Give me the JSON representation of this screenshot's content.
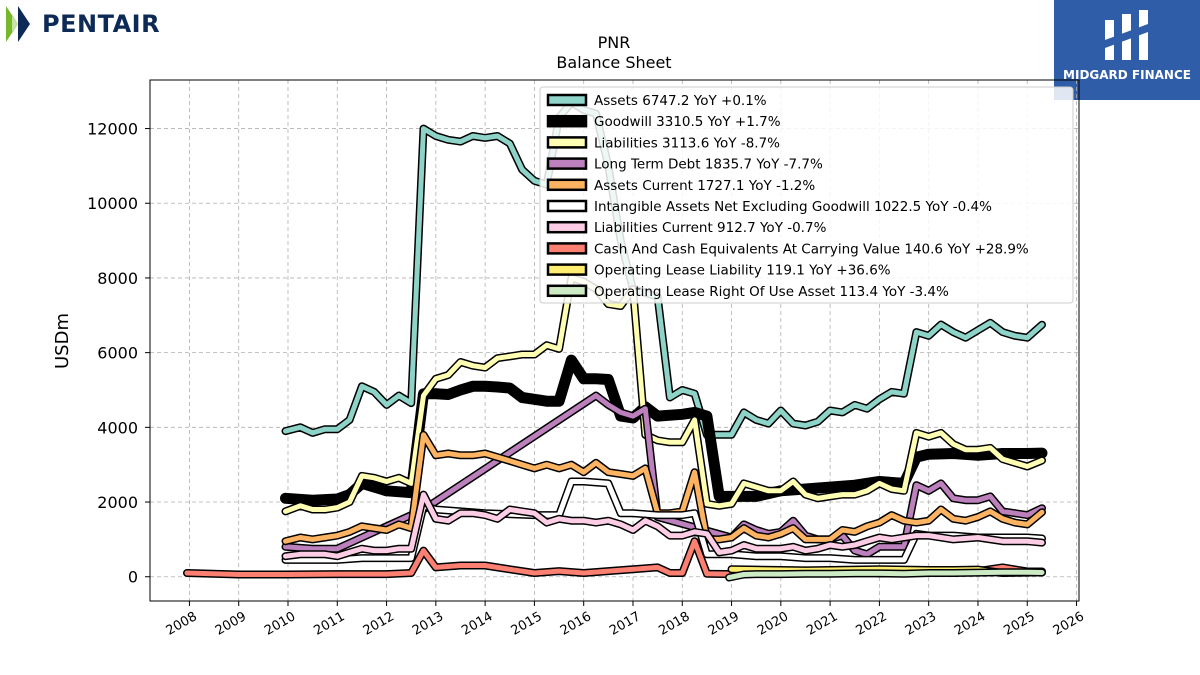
{
  "brand": {
    "logo_text": "PENTAIR",
    "badge_text": "MIDGARD FINANCE",
    "logo_color": "#0d2a57",
    "badge_color": "#2f5da8"
  },
  "chart_data": {
    "type": "line",
    "title": "PNR",
    "subtitle": "Balance  Sheet",
    "ylabel": "USDm",
    "xlabel": "",
    "xlim": [
      2007.2,
      2026.05
    ],
    "ylim": [
      -650,
      13300
    ],
    "x_ticks": [
      2008,
      2009,
      2010,
      2011,
      2012,
      2013,
      2014,
      2015,
      2016,
      2017,
      2018,
      2019,
      2020,
      2021,
      2022,
      2023,
      2024,
      2025,
      2026
    ],
    "y_ticks": [
      0,
      2000,
      4000,
      6000,
      8000,
      10000,
      12000
    ],
    "grid": true,
    "legend_position": "top-right",
    "series": [
      {
        "name": "Assets",
        "label": "Assets  6747.2 YoY +0.1%",
        "color": "#8dd3c7",
        "width": 5,
        "x": [
          2009.95,
          2010.25,
          2010.5,
          2010.75,
          2011.0,
          2011.25,
          2011.5,
          2011.75,
          2012.0,
          2012.25,
          2012.5,
          2012.75,
          2013.0,
          2013.25,
          2013.5,
          2013.75,
          2014.0,
          2014.25,
          2014.5,
          2014.75,
          2015.0,
          2015.25,
          2015.5,
          2015.75,
          2016.0,
          2016.25,
          2016.5,
          2016.75,
          2017.0,
          2017.25,
          2017.5,
          2017.75,
          2018.0,
          2018.25,
          2018.5,
          2018.75,
          2019.0,
          2019.25,
          2019.5,
          2019.75,
          2020.0,
          2020.25,
          2020.5,
          2020.75,
          2021.0,
          2021.25,
          2021.5,
          2021.75,
          2022.0,
          2022.25,
          2022.5,
          2022.75,
          2023.0,
          2023.25,
          2023.5,
          2023.75,
          2024.0,
          2024.25,
          2024.5,
          2024.75,
          2025.0,
          2025.3
        ],
        "y": [
          3900,
          4000,
          3850,
          3950,
          3950,
          4200,
          5100,
          4950,
          4600,
          4850,
          4650,
          12000,
          11800,
          11700,
          11650,
          11800,
          11750,
          11800,
          11600,
          10900,
          10600,
          10500,
          12300,
          12700,
          12500,
          12400,
          11000,
          9000,
          7700,
          7600,
          7500,
          4800,
          5000,
          4900,
          3800,
          3800,
          3800,
          4400,
          4200,
          4100,
          4450,
          4100,
          4050,
          4150,
          4450,
          4400,
          4600,
          4500,
          4750,
          4950,
          4900,
          6550,
          6450,
          6750,
          6550,
          6400,
          6600,
          6800,
          6550,
          6450,
          6400,
          6747.2
        ]
      },
      {
        "name": "Goodwill",
        "label": "Goodwill  3310.5 YoY +1.7%",
        "color": "#000000",
        "width": 8,
        "x": [
          2009.95,
          2010.5,
          2011.0,
          2011.25,
          2011.5,
          2012.0,
          2012.5,
          2012.75,
          2013.0,
          2013.25,
          2013.5,
          2013.75,
          2014.0,
          2014.25,
          2014.5,
          2014.75,
          2015.0,
          2015.25,
          2015.5,
          2015.75,
          2016.0,
          2016.25,
          2016.5,
          2016.75,
          2017.0,
          2017.25,
          2017.5,
          2018.0,
          2018.25,
          2018.5,
          2018.75,
          2019.0,
          2019.5,
          2020.0,
          2020.5,
          2021.0,
          2021.5,
          2022.0,
          2022.5,
          2022.75,
          2023.0,
          2023.5,
          2024.0,
          2024.5,
          2025.0,
          2025.3
        ],
        "y": [
          2100,
          2050,
          2080,
          2200,
          2500,
          2300,
          2250,
          4900,
          4900,
          4880,
          5000,
          5100,
          5100,
          5080,
          5050,
          4800,
          4750,
          4700,
          4700,
          5800,
          5300,
          5300,
          5280,
          4300,
          4250,
          4550,
          4300,
          4350,
          4400,
          4300,
          2150,
          2150,
          2150,
          2300,
          2350,
          2400,
          2450,
          2550,
          2500,
          3200,
          3280,
          3300,
          3250,
          3300,
          3300,
          3310.5
        ]
      },
      {
        "name": "Liabilities",
        "label": "Liabilities  3113.6 YoY -8.7%",
        "color": "#ffffb3",
        "width": 5,
        "x": [
          2009.95,
          2010.25,
          2010.5,
          2010.75,
          2011.0,
          2011.25,
          2011.5,
          2011.75,
          2012.0,
          2012.25,
          2012.5,
          2012.75,
          2013.0,
          2013.25,
          2013.5,
          2013.75,
          2014.0,
          2014.25,
          2014.5,
          2014.75,
          2015.0,
          2015.25,
          2015.5,
          2015.75,
          2016.0,
          2016.25,
          2016.5,
          2016.75,
          2017.0,
          2017.25,
          2017.5,
          2017.75,
          2018.0,
          2018.25,
          2018.5,
          2018.75,
          2019.0,
          2019.25,
          2019.5,
          2019.75,
          2020.0,
          2020.25,
          2020.5,
          2020.75,
          2021.0,
          2021.25,
          2021.5,
          2021.75,
          2022.0,
          2022.25,
          2022.5,
          2022.75,
          2023.0,
          2023.25,
          2023.5,
          2023.75,
          2024.0,
          2024.25,
          2024.5,
          2024.75,
          2025.0,
          2025.3
        ],
        "y": [
          1750,
          1900,
          1800,
          1800,
          1850,
          2000,
          2700,
          2650,
          2550,
          2650,
          2500,
          4850,
          5300,
          5400,
          5750,
          5650,
          5600,
          5850,
          5900,
          5950,
          5950,
          6200,
          6100,
          8000,
          7900,
          7700,
          7300,
          7250,
          7700,
          3800,
          3650,
          3600,
          3600,
          4200,
          1950,
          1900,
          1950,
          2500,
          2400,
          2300,
          2300,
          2550,
          2200,
          2100,
          2150,
          2200,
          2200,
          2300,
          2500,
          2350,
          2300,
          3850,
          3750,
          3850,
          3550,
          3400,
          3400,
          3450,
          3150,
          3050,
          2950,
          3113.6
        ]
      },
      {
        "name": "Long Term Debt",
        "label": "Long Term Debt  1835.7 YoY -7.7%",
        "color": "#bc80bd",
        "width": 5,
        "x": [
          2009.95,
          2010.5,
          2011.0,
          2012.75,
          2016.25,
          2016.5,
          2016.75,
          2017.0,
          2017.25,
          2017.5,
          2019.0,
          2019.25,
          2019.5,
          2019.75,
          2020.0,
          2020.25,
          2020.5,
          2020.75,
          2021.0,
          2021.25,
          2021.5,
          2021.75,
          2022.0,
          2022.25,
          2022.5,
          2022.75,
          2023.0,
          2023.25,
          2023.5,
          2023.75,
          2024.0,
          2024.25,
          2024.5,
          2024.75,
          2025.0,
          2025.3
        ],
        "y": [
          800,
          750,
          750,
          1800,
          4850,
          4600,
          4400,
          4300,
          4500,
          1600,
          1050,
          1400,
          1250,
          1150,
          1200,
          1500,
          1100,
          1000,
          1000,
          1100,
          700,
          600,
          800,
          800,
          800,
          2450,
          2300,
          2500,
          2100,
          2050,
          2050,
          2150,
          1750,
          1700,
          1650,
          1835.7
        ]
      },
      {
        "name": "Assets Current",
        "label": "Assets Current  1727.1 YoY -1.2%",
        "color": "#fdb462",
        "width": 5,
        "x": [
          2009.95,
          2010.25,
          2010.5,
          2010.75,
          2011.0,
          2011.25,
          2011.5,
          2011.75,
          2012.0,
          2012.25,
          2012.5,
          2012.75,
          2013.0,
          2013.25,
          2013.5,
          2013.75,
          2014.0,
          2014.25,
          2014.5,
          2014.75,
          2015.0,
          2015.25,
          2015.5,
          2015.75,
          2016.0,
          2016.25,
          2016.5,
          2016.75,
          2017.0,
          2017.25,
          2017.5,
          2017.75,
          2018.0,
          2018.25,
          2018.5,
          2018.75,
          2019.0,
          2019.25,
          2019.5,
          2019.75,
          2020.0,
          2020.25,
          2020.5,
          2020.75,
          2021.0,
          2021.25,
          2021.5,
          2021.75,
          2022.0,
          2022.25,
          2022.5,
          2022.75,
          2023.0,
          2023.25,
          2023.5,
          2023.75,
          2024.0,
          2024.25,
          2024.5,
          2024.75,
          2025.0,
          2025.3
        ],
        "y": [
          950,
          1050,
          1000,
          1050,
          1100,
          1200,
          1350,
          1300,
          1250,
          1400,
          1300,
          3800,
          3250,
          3300,
          3250,
          3250,
          3300,
          3200,
          3100,
          3000,
          2900,
          3000,
          2900,
          3000,
          2800,
          3050,
          2800,
          2750,
          2700,
          2900,
          1700,
          1700,
          1750,
          2800,
          1000,
          1000,
          1050,
          1300,
          1100,
          1050,
          1150,
          1300,
          1000,
          1000,
          1000,
          1250,
          1200,
          1350,
          1450,
          1650,
          1500,
          1450,
          1500,
          1800,
          1550,
          1500,
          1600,
          1750,
          1550,
          1450,
          1400,
          1727.1
        ]
      },
      {
        "name": "Intangible Assets Net Excluding Goodwill",
        "label": "Intangible Assets Net Excluding Goodwill  1022.5 YoY -0.4%",
        "color": "#ffffff",
        "width": 5,
        "x": [
          2009.95,
          2010.5,
          2011.0,
          2011.5,
          2012.0,
          2012.5,
          2012.75,
          2013.0,
          2013.5,
          2014.0,
          2015.0,
          2015.5,
          2015.75,
          2016.0,
          2016.5,
          2016.75,
          2017.0,
          2017.5,
          2018.0,
          2018.25,
          2018.5,
          2019.0,
          2019.5,
          2020.0,
          2020.5,
          2021.0,
          2021.5,
          2022.0,
          2022.5,
          2022.75,
          2023.0,
          2023.5,
          2024.0,
          2024.5,
          2025.0,
          2025.3
        ],
        "y": [
          450,
          450,
          450,
          500,
          500,
          500,
          1900,
          1800,
          1750,
          1700,
          1650,
          1650,
          2550,
          2550,
          2500,
          1700,
          1700,
          1650,
          1650,
          1700,
          600,
          600,
          550,
          550,
          500,
          500,
          450,
          450,
          450,
          1150,
          1100,
          1100,
          1050,
          1050,
          1050,
          1022.5
        ]
      },
      {
        "name": "Liabilities Current",
        "label": "Liabilities Current  912.7 YoY -0.7%",
        "color": "#fccde5",
        "width": 5,
        "x": [
          2009.95,
          2010.25,
          2010.5,
          2010.75,
          2011.0,
          2011.25,
          2011.5,
          2011.75,
          2012.0,
          2012.25,
          2012.5,
          2012.75,
          2013.0,
          2013.25,
          2013.5,
          2013.75,
          2014.0,
          2014.25,
          2014.5,
          2014.75,
          2015.0,
          2015.25,
          2015.5,
          2015.75,
          2016.0,
          2016.25,
          2016.5,
          2016.75,
          2017.0,
          2017.25,
          2017.5,
          2017.75,
          2018.0,
          2018.25,
          2018.5,
          2018.75,
          2019.0,
          2019.25,
          2019.5,
          2019.75,
          2020.0,
          2020.25,
          2020.5,
          2020.75,
          2021.0,
          2021.25,
          2021.5,
          2021.75,
          2022.0,
          2022.25,
          2022.5,
          2022.75,
          2023.0,
          2023.5,
          2024.0,
          2024.5,
          2025.0,
          2025.3
        ],
        "y": [
          550,
          600,
          600,
          600,
          550,
          650,
          750,
          700,
          700,
          750,
          750,
          2200,
          1550,
          1500,
          1700,
          1700,
          1650,
          1550,
          1800,
          1750,
          1700,
          1450,
          1550,
          1500,
          1500,
          1450,
          1500,
          1400,
          1250,
          1500,
          1350,
          1100,
          1100,
          1200,
          1150,
          650,
          700,
          850,
          750,
          750,
          750,
          800,
          700,
          750,
          850,
          800,
          850,
          950,
          1050,
          1000,
          1050,
          1100,
          1100,
          1000,
          1050,
          950,
          950,
          912.7
        ]
      },
      {
        "name": "Cash And Cash Equivalents At Carrying Value",
        "label": "Cash And Cash Equivalents At Carrying Value  140.6 YoY +28.9%",
        "color": "#fb8072",
        "width": 5,
        "x": [
          2007.95,
          2009.0,
          2010.0,
          2011.0,
          2012.0,
          2012.5,
          2012.75,
          2013.0,
          2013.5,
          2014.0,
          2014.5,
          2015.0,
          2015.5,
          2016.0,
          2016.5,
          2017.0,
          2017.5,
          2017.75,
          2018.0,
          2018.25,
          2018.5,
          2019.0,
          2019.5,
          2020.0,
          2020.5,
          2021.0,
          2021.5,
          2022.0,
          2022.5,
          2023.0,
          2023.5,
          2024.0,
          2024.5,
          2025.0,
          2025.3
        ],
        "y": [
          100,
          60,
          60,
          70,
          70,
          100,
          700,
          250,
          300,
          300,
          200,
          100,
          150,
          100,
          150,
          200,
          250,
          100,
          100,
          950,
          80,
          70,
          100,
          100,
          150,
          100,
          150,
          90,
          100,
          150,
          100,
          150,
          250,
          140,
          140.6
        ]
      },
      {
        "name": "Operating Lease Liability",
        "label": "Operating Lease Liability  119.1 YoY +36.6%",
        "color": "#ffed6f",
        "width": 5,
        "x": [
          2019.0,
          2019.5,
          2020.0,
          2020.5,
          2021.0,
          2021.5,
          2022.0,
          2022.5,
          2023.0,
          2023.5,
          2024.0,
          2024.5,
          2025.0,
          2025.3
        ],
        "y": [
          200,
          190,
          180,
          170,
          180,
          190,
          200,
          190,
          180,
          180,
          190,
          100,
          110,
          119.1
        ]
      },
      {
        "name": "Operating Lease Right Of Use Asset",
        "label": "Operating Lease Right Of Use Asset  113.4 YoY -3.4%",
        "color": "#ccebc5",
        "width": 5,
        "x": [
          2018.95,
          2019.25,
          2019.5,
          2020.0,
          2020.5,
          2021.0,
          2021.5,
          2022.0,
          2022.5,
          2023.0,
          2023.5,
          2024.0,
          2024.5,
          2025.0,
          2025.3
        ],
        "y": [
          -20,
          60,
          70,
          70,
          80,
          80,
          90,
          90,
          80,
          100,
          100,
          110,
          120,
          120,
          113.4
        ]
      }
    ]
  }
}
